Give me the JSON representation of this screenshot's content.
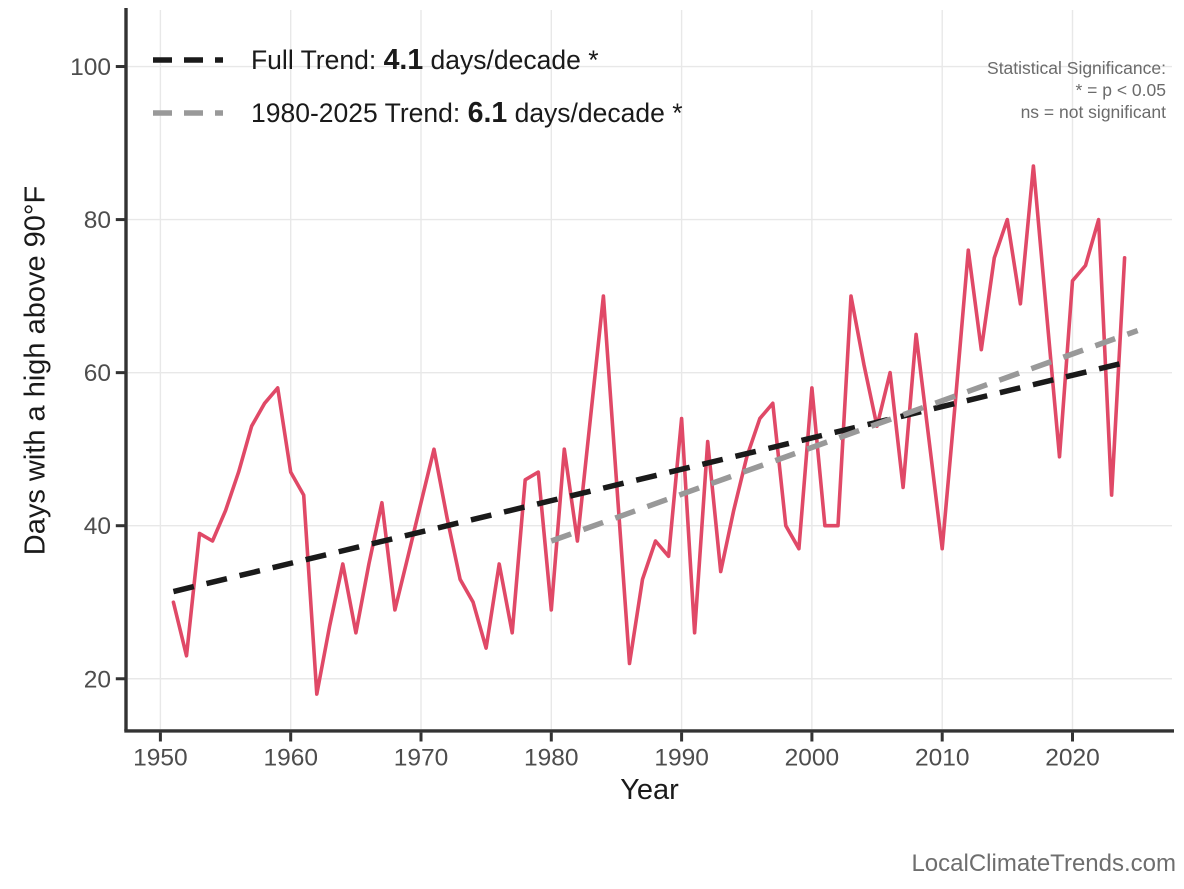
{
  "legend": {
    "items": [
      {
        "name": "full-trend",
        "prefix": "Full Trend: ",
        "value": "4.1",
        "suffix": " days/decade *",
        "color": "#1a1a1a"
      },
      {
        "name": "recent-trend",
        "prefix": "1980-2025 Trend: ",
        "value": "6.1",
        "suffix": " days/decade *",
        "color": "#999999"
      }
    ]
  },
  "significance_note": {
    "line1": "Statistical Significance:",
    "line2": "* = p < 0.05",
    "line3": "ns = not significant"
  },
  "watermark": "LocalClimateTrends.com",
  "chart_data": {
    "type": "line",
    "title": "",
    "xlabel": "Year",
    "ylabel": "Days with a high above 90°F",
    "xlim": [
      1947.4,
      2027.6
    ],
    "ylim": [
      13,
      108
    ],
    "x_ticks": [
      1950,
      1960,
      1970,
      1980,
      1990,
      2000,
      2010,
      2020
    ],
    "y_ticks": [
      20,
      40,
      60,
      80,
      100
    ],
    "grid": true,
    "legend_position": "top-left",
    "colors": {
      "series": "#e04967",
      "grid": "#e8e8e8",
      "axis_line": "#333333",
      "tick_label": "#4d4d4d",
      "axis_title": "#1a1a1a"
    },
    "series": [
      {
        "name": "days-above-90F-per-year",
        "color": "#e04967",
        "years": [
          1951,
          1952,
          1953,
          1954,
          1955,
          1956,
          1957,
          1958,
          1959,
          1960,
          1961,
          1962,
          1963,
          1964,
          1965,
          1966,
          1967,
          1968,
          1969,
          1970,
          1971,
          1972,
          1973,
          1974,
          1975,
          1976,
          1977,
          1978,
          1979,
          1980,
          1981,
          1982,
          1983,
          1984,
          1985,
          1986,
          1987,
          1988,
          1989,
          1990,
          1991,
          1992,
          1993,
          1994,
          1995,
          1996,
          1997,
          1998,
          1999,
          2000,
          2001,
          2002,
          2003,
          2004,
          2005,
          2006,
          2007,
          2008,
          2009,
          2010,
          2011,
          2012,
          2013,
          2014,
          2015,
          2016,
          2017,
          2018,
          2019,
          2020,
          2021,
          2022,
          2023,
          2024
        ],
        "values": [
          30,
          23,
          39,
          38,
          42,
          47,
          53,
          56,
          58,
          47,
          44,
          18,
          27,
          35,
          26,
          35,
          43,
          29,
          36,
          43,
          50,
          41,
          33,
          30,
          24,
          35,
          26,
          46,
          47,
          29,
          50,
          38,
          54,
          70,
          46,
          22,
          33,
          38,
          36,
          54,
          26,
          51,
          34,
          42,
          49,
          54,
          56,
          40,
          37,
          58,
          40,
          40,
          70,
          61,
          53,
          60,
          45,
          65,
          51,
          37,
          56,
          76,
          63,
          75,
          80,
          69,
          87,
          68,
          49,
          72,
          74,
          80,
          44,
          75
        ]
      }
    ],
    "trend_lines": [
      {
        "name": "full-trend",
        "label": "Full Trend",
        "slope_days_per_decade": 4.1,
        "significance": "*",
        "color": "#1a1a1a",
        "year_start": 1951,
        "value_start": 31.4,
        "year_end": 2024,
        "value_end": 61.3
      },
      {
        "name": "recent-trend",
        "label": "1980-2025 Trend",
        "slope_days_per_decade": 6.1,
        "significance": "*",
        "color": "#999999",
        "year_start": 1980,
        "value_start": 38.0,
        "year_end": 2025,
        "value_end": 65.5
      }
    ]
  }
}
